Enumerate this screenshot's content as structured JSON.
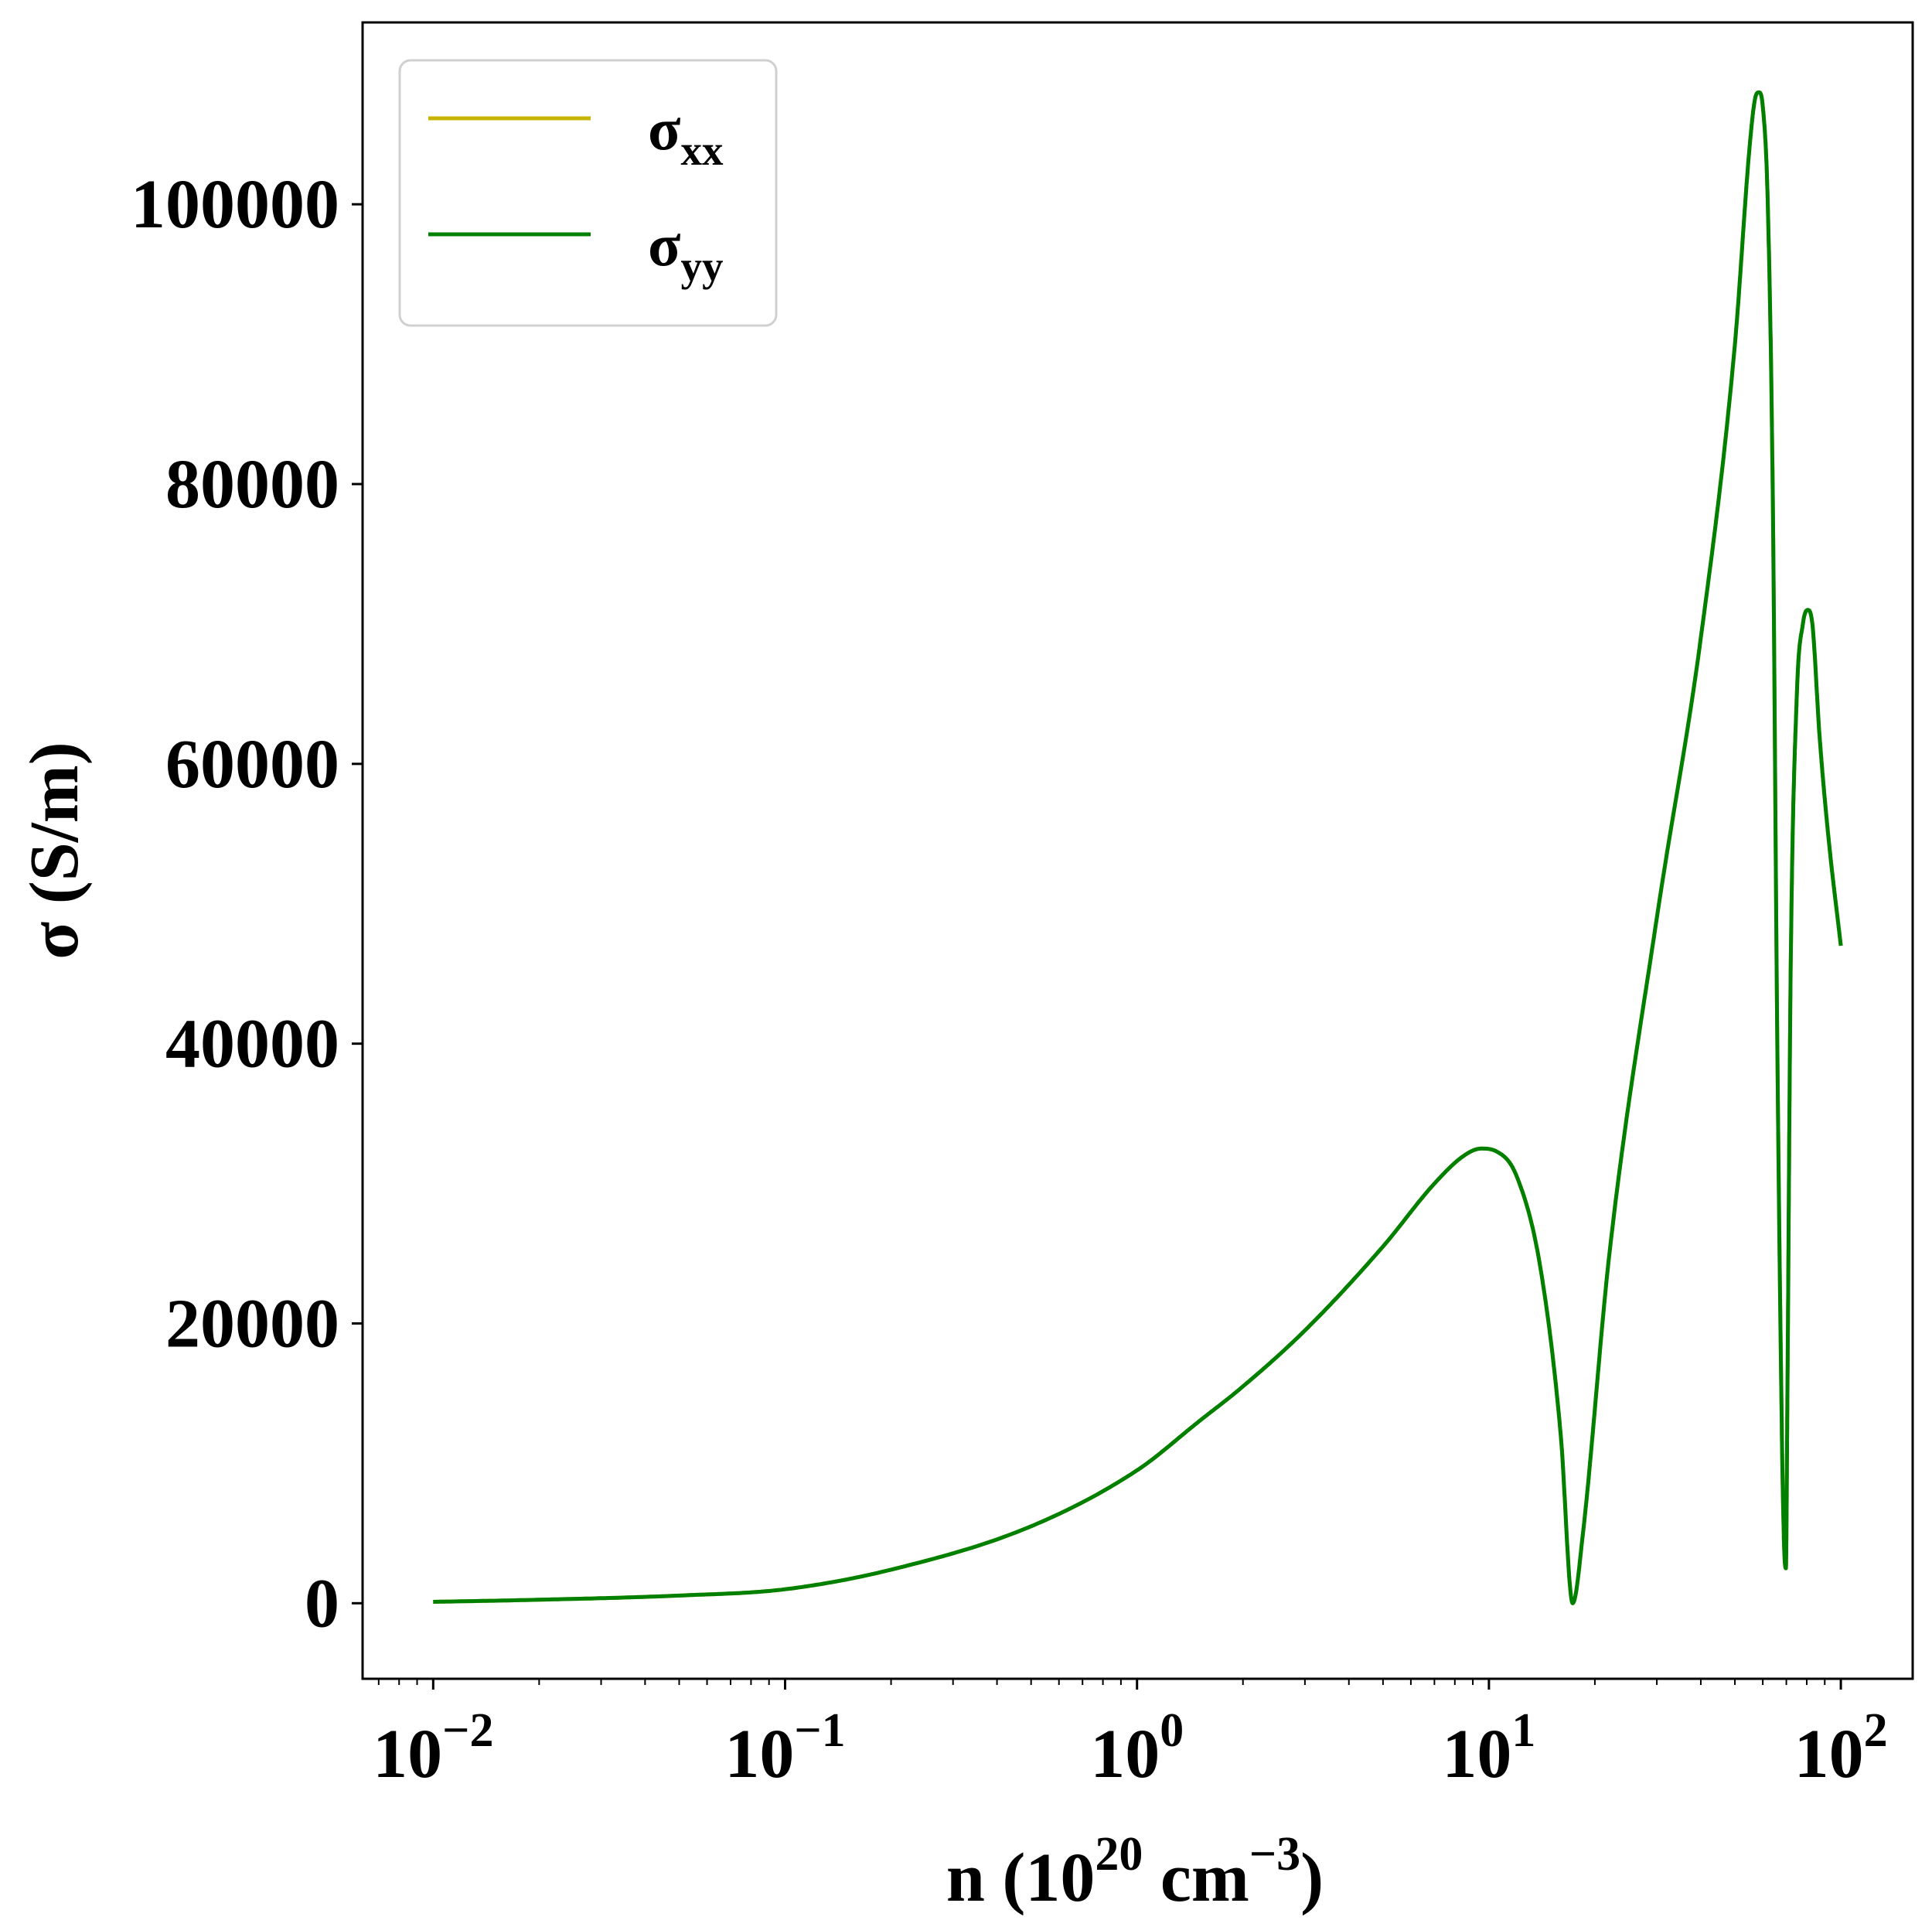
{
  "chart_data": {
    "type": "line",
    "xscale": "log",
    "xlabel": "n (10^20 cm^-3)",
    "xlabel_parts": {
      "prefix": "n (10",
      "exp1": "20",
      "mid": " cm",
      "exp2": "−3",
      "suffix": ")"
    },
    "ylabel": "σ (S/m)",
    "xlim": [
      0.0063,
      160
    ],
    "ylim": [
      -5400,
      113000
    ],
    "x_ticks": [
      {
        "value": 0.01,
        "base": "10",
        "exp": "−2"
      },
      {
        "value": 0.1,
        "base": "10",
        "exp": "−1"
      },
      {
        "value": 1,
        "base": "10",
        "exp": "0"
      },
      {
        "value": 10,
        "base": "10",
        "exp": "1"
      },
      {
        "value": 100,
        "base": "10",
        "exp": "2"
      }
    ],
    "y_ticks": [
      {
        "value": 0,
        "label": "0"
      },
      {
        "value": 20000,
        "label": "20000"
      },
      {
        "value": 40000,
        "label": "40000"
      },
      {
        "value": 60000,
        "label": "60000"
      },
      {
        "value": 80000,
        "label": "80000"
      },
      {
        "value": 100000,
        "label": "100000"
      }
    ],
    "legend_position": "top-left",
    "grid": false,
    "series": [
      {
        "name": "σxx",
        "name_base": "σ",
        "name_sub": "xx",
        "color": "#c8b400",
        "x": [
          0.01,
          0.02,
          0.05,
          0.1,
          0.2,
          0.5,
          1.0,
          1.5,
          2.0,
          3.0,
          5.0,
          7.0,
          8.5,
          9.5,
          10.5,
          12.0,
          14.0,
          16.0,
          17.3,
          18.5,
          22.0,
          30.0,
          40.0,
          50.0,
          55.0,
          57.0,
          58.5,
          60.0,
          62.0,
          64.0,
          66.0,
          68.0,
          69.0,
          69.8,
          70.5,
          72.0,
          75.0,
          78.0,
          80.5,
          83.0,
          87.0,
          92.0,
          100.0
        ],
        "y": [
          100,
          250,
          550,
          1000,
          2400,
          5500,
          9500,
          13000,
          15500,
          19500,
          25500,
          30000,
          32000,
          32500,
          32300,
          30500,
          24000,
          12000,
          0,
          5000,
          25000,
          49000,
          69000,
          90000,
          104000,
          107500,
          108000,
          107000,
          100000,
          80000,
          40000,
          12000,
          4000,
          2500,
          15000,
          45000,
          65000,
          70000,
          71000,
          70000,
          62000,
          55000,
          47000
        ]
      },
      {
        "name": "σyy",
        "name_base": "σ",
        "name_sub": "yy",
        "color": "#008000",
        "x": [
          0.01,
          0.02,
          0.05,
          0.1,
          0.2,
          0.5,
          1.0,
          1.5,
          2.0,
          3.0,
          5.0,
          7.0,
          8.5,
          9.5,
          10.5,
          12.0,
          14.0,
          16.0,
          17.3,
          18.5,
          22.0,
          30.0,
          40.0,
          50.0,
          55.0,
          57.0,
          58.5,
          60.0,
          62.0,
          64.0,
          66.0,
          68.0,
          69.0,
          69.8,
          70.5,
          72.0,
          75.0,
          78.0,
          80.5,
          83.0,
          87.0,
          92.0,
          100.0
        ],
        "y": [
          100,
          250,
          550,
          1000,
          2400,
          5500,
          9500,
          13000,
          15500,
          19500,
          25500,
          30000,
          32000,
          32500,
          32300,
          30500,
          24000,
          12000,
          0,
          5000,
          25000,
          49000,
          69000,
          90000,
          104000,
          107500,
          108000,
          107000,
          100000,
          80000,
          40000,
          12000,
          4000,
          2500,
          15000,
          45000,
          65000,
          70000,
          71000,
          70000,
          62000,
          55000,
          47000
        ]
      }
    ]
  }
}
